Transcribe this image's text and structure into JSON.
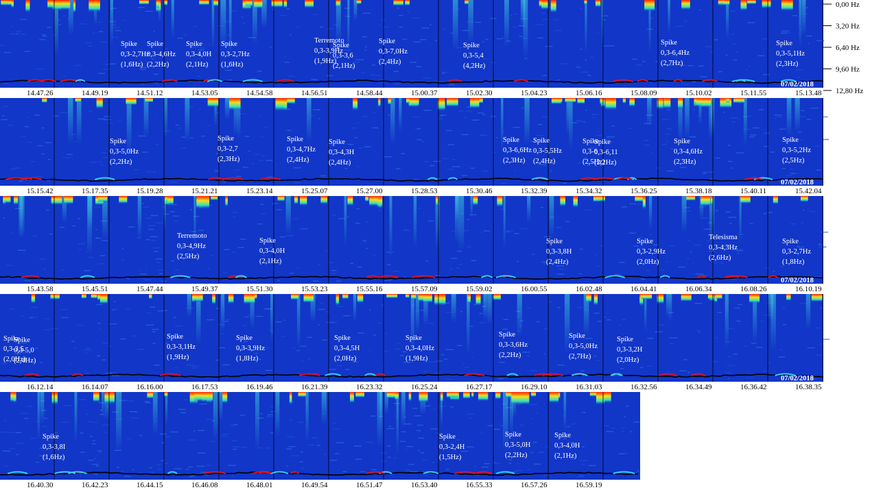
{
  "chart_data": {
    "type": "heatmap",
    "description_axis": "spectrogram",
    "colors": {
      "background": "#1236c8",
      "high": "#ff2000",
      "mid": "#f0e020",
      "low_mid": "#30e0c0",
      "trace": "#000000",
      "spike_segment": "#e01020",
      "spike_segment_alt": "#30d0ff"
    },
    "frequency_axis": {
      "ticks": [
        "0,00 Hz",
        "3,20 Hz",
        "6,40 Hz",
        "9,60 Hz",
        "12,80 Hz"
      ],
      "range": [
        0,
        12.8
      ]
    },
    "rows": [
      {
        "date": "07/02/2018",
        "times": [
          "14.47.26",
          "14.49.19",
          "14.51.12",
          "14.53.05",
          "14.54.58",
          "14.56.51",
          "14.58.44",
          "15.00.37",
          "15.02.30",
          "15.04.23",
          "15.06.16",
          "15.08.09",
          "15.10.02",
          "15.11.55",
          "15.13.48"
        ],
        "annotations": [
          {
            "lines": [
              "Spike",
              "0,3-2,7Hz",
              "(1,6Hz)"
            ]
          },
          {
            "lines": [
              "Spike",
              "0,3-4,6Hz",
              "(2,2Hz)"
            ]
          },
          {
            "lines": [
              "Spike",
              "0,3-4,0H",
              "(2,1Hz)"
            ]
          },
          {
            "lines": [
              "Spike",
              "0,3-2,7Hz",
              "(1,6Hz)"
            ]
          },
          {
            "lines": [
              "Terremoto",
              "0,3-3,9Hz",
              "(1,9Hz)"
            ]
          },
          {
            "lines": [
              "Spike",
              "0,3-3,6",
              "(2,1Hz)"
            ]
          },
          {
            "lines": [
              "Spike",
              "0,3-7,0Hz",
              "(2,4Hz)"
            ]
          },
          {
            "lines": [
              "Spike",
              "0,3-5,4",
              "(4,2Hz)"
            ]
          },
          {
            "lines": [
              "Spike",
              "0,3-6,4Hz",
              "(2,7Hz)"
            ]
          },
          {
            "lines": [
              "Spike",
              "0,3-5,1Hz",
              "(2,3Hz)"
            ]
          }
        ]
      },
      {
        "date": "07/02/2018",
        "times": [
          "15.15.42",
          "15.17.35",
          "15.19.28",
          "15.21.21",
          "15.23.14",
          "15.25.07",
          "15.27.00",
          "15.28.53",
          "15.30.46",
          "15.32.39",
          "15.34.32",
          "15.36.25",
          "15.38.18",
          "15.40.11",
          "15.42.04"
        ],
        "annotations": [
          {
            "lines": [
              "Spike",
              "0,3-5,0Hz",
              "(2,2Hz)"
            ]
          },
          {
            "lines": [
              "Spike",
              "0,3-2,7",
              "(2,3Hz)"
            ]
          },
          {
            "lines": [
              "Spike",
              "0,3-4,7Hz",
              "(2,4Hz)"
            ]
          },
          {
            "lines": [
              "Spike",
              "0,3-4,3H",
              "(2,4Hz)"
            ]
          },
          {
            "lines": [
              "Spike",
              "0,3-6,6Hz",
              "(2,3Hz)"
            ]
          },
          {
            "lines": [
              "Spike",
              "0,3-5,5Hz",
              "(2,4Hz)"
            ]
          },
          {
            "lines": [
              "Spike",
              "0,3-6",
              "(2,5Hz)"
            ]
          },
          {
            "lines": [
              "Spike",
              "0,3-6,11",
              "(2,2Hz)"
            ]
          },
          {
            "lines": [
              "Spike",
              "0,3-4,6Hz",
              "(2,3Hz)"
            ]
          },
          {
            "lines": [
              "Spike",
              "0,3-5,2Hz",
              "(2,5Hz)"
            ]
          }
        ]
      },
      {
        "date": "07/02/2018",
        "times": [
          "15.43.58",
          "15.45.51",
          "15.47.44",
          "15.49.37",
          "15.51.30",
          "15.53.23",
          "15.55.16",
          "15.57.09",
          "15.59.02",
          "16.00.55",
          "16.02.48",
          "16.04.41",
          "16.06.34",
          "16.08.26",
          "16.10.19"
        ],
        "annotations": [
          {
            "lines": [
              "Terremoto",
              "0,3-4,9Hz",
              "(2,5Hz)"
            ]
          },
          {
            "lines": [
              "Spike",
              "0,3-4,0H",
              "(2,1Hz)"
            ]
          },
          {
            "lines": [
              "Spike",
              "0,3-3,8H",
              "(2,4Hz)"
            ]
          },
          {
            "lines": [
              "Spike",
              "0,3-2,9Hz",
              "(2,0Hz)"
            ]
          },
          {
            "lines": [
              "Telesisma",
              "0,3-4,3Hz",
              "(2,6Hz)"
            ]
          },
          {
            "lines": [
              "Spike",
              "0,3-2,7Hz",
              "(1,8Hz)"
            ]
          }
        ]
      },
      {
        "date": "07/02/2018",
        "times": [
          "16.12.14",
          "16.14.07",
          "16.16.00",
          "16.17.53",
          "16.19.46",
          "16.21.39",
          "16.23.32",
          "16.25.24",
          "16.27.17",
          "16.29.10",
          "16.31.03",
          "16.32.56",
          "16.34.49",
          "16.36.42",
          "16.38.35"
        ],
        "annotations": [
          {
            "lines": [
              "Spike",
              "0,3-3,5",
              "(2,0Hz)"
            ]
          },
          {
            "lines": [
              "Spike",
              "0,3-5,0",
              "(2,4Hz)"
            ]
          },
          {
            "lines": [
              "Spike",
              "0,3-3,1Hz",
              "(1,9Hz)"
            ]
          },
          {
            "lines": [
              "Spike",
              "0,3-3,9Hz",
              "(1,8Hz)"
            ]
          },
          {
            "lines": [
              "Spike",
              "0,3-4,5H",
              "(2,0Hz)"
            ]
          },
          {
            "lines": [
              "Spike",
              "0,3-4,0Hz",
              "(1,9Hz)"
            ]
          },
          {
            "lines": [
              "Spike",
              "0,3-3,6Hz",
              "(2,2Hz)"
            ]
          },
          {
            "lines": [
              "Spike",
              "0,3-5,0Hz",
              "(2,7Hz)"
            ]
          },
          {
            "lines": [
              "Spike",
              "0,3-3,2H",
              "(2,0Hz)"
            ]
          }
        ]
      },
      {
        "date": "",
        "times": [
          "16.40.30",
          "16.42.23",
          "16.44.15",
          "16.46.08",
          "16.48.01",
          "16.49.54",
          "16.51.47",
          "16.53.40",
          "16.55.33",
          "16.57.26",
          "16.59.19"
        ],
        "annotations": [
          {
            "lines": [
              "Spike",
              "0,3-3,8I",
              "(1,6Hz)"
            ]
          },
          {
            "lines": [
              "Spike",
              "0,3-2,4H",
              "(1,5Hz)"
            ]
          },
          {
            "lines": [
              "Spike",
              "0,3-5,0H",
              "(2,2Hz)"
            ]
          },
          {
            "lines": [
              "Spike",
              "0,3-4,0H",
              "(2,1Hz)"
            ]
          }
        ]
      }
    ]
  }
}
